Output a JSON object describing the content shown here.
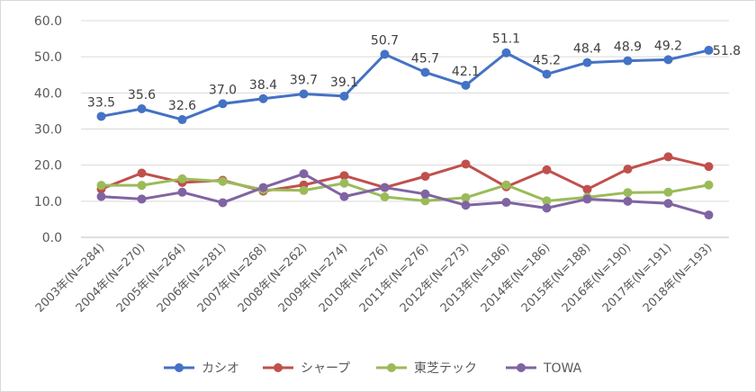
{
  "chart_data": {
    "type": "line",
    "title": "",
    "xlabel": "",
    "ylabel": "",
    "ylim": [
      0,
      60
    ],
    "yticks": [
      "0.0",
      "10.0",
      "20.0",
      "30.0",
      "40.0",
      "50.0",
      "60.0"
    ],
    "grid": true,
    "legend_position": "bottom",
    "categories": [
      "2003年(N=284)",
      "2004年(N=270)",
      "2005年(N=264)",
      "2006年(N=281)",
      "2007年(N=268)",
      "2008年(N=262)",
      "2009年(N=274)",
      "2010年(N=276)",
      "2011年(N=276)",
      "2012年(N=273)",
      "2013年(N=186)",
      "2014年(N=186)",
      "2015年(N=188)",
      "2016年(N=190)",
      "2017年(N=191)",
      "2018年(N=193)"
    ],
    "series": [
      {
        "name": "カシオ",
        "color": "#4472c4",
        "values": [
          33.5,
          35.6,
          32.6,
          37.0,
          38.4,
          39.7,
          39.1,
          50.7,
          45.7,
          42.1,
          51.1,
          45.2,
          48.4,
          48.9,
          49.2,
          51.8
        ],
        "labels": [
          "33.5",
          "35.6",
          "32.6",
          "37.0",
          "38.4",
          "39.7",
          "39.1",
          "50.7",
          "45.7",
          "42.1",
          "51.1",
          "45.2",
          "48.4",
          "48.9",
          "49.2",
          "51.8"
        ]
      },
      {
        "name": "シャープ",
        "color": "#c0504d",
        "values": [
          13.4,
          17.8,
          15.2,
          15.8,
          12.8,
          14.5,
          17.1,
          13.8,
          16.9,
          20.3,
          14.0,
          18.7,
          13.3,
          18.9,
          22.3,
          19.6
        ]
      },
      {
        "name": "東芝テック",
        "color": "#9bbb59",
        "values": [
          14.4,
          14.4,
          16.2,
          15.5,
          13.2,
          13.0,
          15.0,
          11.2,
          10.1,
          11.0,
          14.5,
          10.1,
          11.1,
          12.4,
          12.5,
          14.5
        ]
      },
      {
        "name": "TOWA",
        "color": "#8064a2",
        "values": [
          11.3,
          10.6,
          12.5,
          9.6,
          13.8,
          17.6,
          11.3,
          13.8,
          12.0,
          8.9,
          9.7,
          8.1,
          10.6,
          10.0,
          9.4,
          6.2
        ]
      }
    ]
  }
}
